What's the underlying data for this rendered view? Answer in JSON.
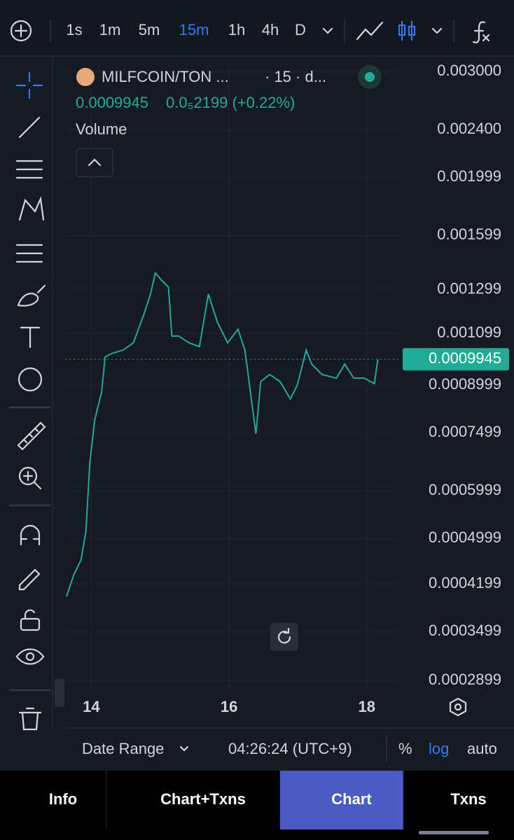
{
  "toolbar": {
    "intervals": [
      "1s",
      "1m",
      "5m",
      "15m",
      "1h",
      "4h",
      "D"
    ],
    "active_interval": "15m"
  },
  "legend": {
    "symbol": "MILFCOIN/TON ...",
    "interval": "· 15 · d...",
    "price": "0.0009945",
    "change": "0.0₅2199 (+0.22%)",
    "volume_label": "Volume"
  },
  "chart_data": {
    "type": "line",
    "log_scale": true,
    "grid": true,
    "color": "#26a69a",
    "x": [
      13.64,
      13.75,
      13.85,
      13.92,
      13.98,
      14.05,
      14.15,
      14.2,
      14.3,
      14.46,
      14.61,
      14.76,
      14.86,
      14.93,
      15.02,
      15.12,
      15.17,
      15.27,
      15.42,
      15.57,
      15.7,
      15.83,
      15.98,
      16.13,
      16.23,
      16.31,
      16.39,
      16.46,
      16.59,
      16.74,
      16.89,
      16.99,
      17.12,
      17.2,
      17.35,
      17.56,
      17.68,
      17.81,
      17.96,
      18.11,
      18.16
    ],
    "values": [
      0.0004,
      0.000436,
      0.00046,
      0.000512,
      0.000671,
      0.000788,
      0.000877,
      0.001003,
      0.001017,
      0.00103,
      0.001059,
      0.001178,
      0.001277,
      0.001385,
      0.001347,
      0.001312,
      0.001087,
      0.001087,
      0.001059,
      0.001044,
      0.001277,
      0.001147,
      0.001059,
      0.001116,
      0.00103,
      0.000877,
      0.000747,
      0.000913,
      0.000938,
      0.000913,
      0.000854,
      0.0009,
      0.00103,
      0.000976,
      0.000938,
      0.000925,
      0.000976,
      0.000925,
      0.000925,
      0.000906,
      0.000994
    ],
    "last_price": {
      "value": 0.0009945,
      "label": "0.0009945"
    },
    "last_price_color": "#22ab94",
    "xlim": [
      13.62,
      18.47
    ],
    "xticks": [
      14,
      16,
      18
    ],
    "ylim": [
      0.00028,
      0.0031
    ],
    "yticks": [
      {
        "value": 0.003,
        "label": "0.003000"
      },
      {
        "value": 0.0024,
        "label": "0.002400"
      },
      0.001999,
      0.001599,
      0.001299,
      0.001099,
      0.0008999,
      0.0007499,
      0.0005999,
      0.0004999,
      0.0004199,
      0.0003499,
      0.0002899
    ]
  },
  "footer": {
    "date_range": "Date Range",
    "time": "04:26:24 (UTC+9)",
    "percent": "%",
    "log": "log",
    "auto": "auto"
  },
  "tabs": [
    "Info",
    "Chart+Txns",
    "Chart",
    "Txns"
  ],
  "active_tab": "Chart"
}
